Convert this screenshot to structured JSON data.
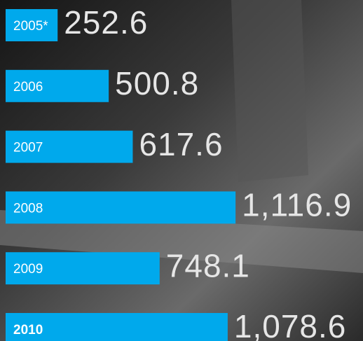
{
  "chart_data": {
    "type": "bar",
    "orientation": "horizontal",
    "categories": [
      "2005*",
      "2006",
      "2007",
      "2008",
      "2009",
      "2010"
    ],
    "values": [
      252.6,
      500.8,
      617.6,
      1116.9,
      748.1,
      1078.6
    ],
    "value_labels": [
      "252.6",
      "500.8",
      "617.6",
      "1,116.9",
      "748.1",
      "1,078.6"
    ],
    "color": "#00a9ec"
  }
}
